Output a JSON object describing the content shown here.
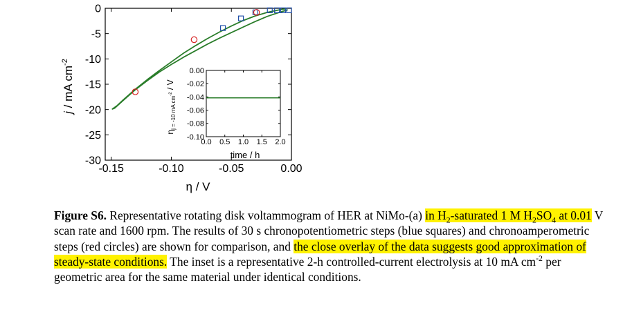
{
  "chart_data": [
    {
      "type": "line",
      "title": "",
      "xlabel": "η / V",
      "ylabel_italic": "j",
      "ylabel_rest": " / mA cm",
      "ylabel_exp": "-2",
      "xlim": [
        -0.155,
        0.0
      ],
      "ylim": [
        -30,
        0
      ],
      "xticks": [
        -0.15,
        -0.1,
        -0.05,
        0.0
      ],
      "xtick_labels": [
        "-0.15",
        "-0.10",
        "-0.05",
        "0.00"
      ],
      "yticks": [
        0,
        -5,
        -10,
        -15,
        -20,
        -25,
        -30
      ],
      "ytick_labels": [
        "0",
        "-5",
        "-10",
        "-15",
        "-20",
        "-25",
        "-30"
      ],
      "grid": false,
      "series": [
        {
          "role": "voltammogram",
          "color": "#2a7d2a",
          "x": [
            -0.003,
            -0.01,
            -0.02,
            -0.03,
            -0.04,
            -0.05,
            -0.06,
            -0.07,
            -0.08,
            -0.09,
            -0.1,
            -0.11,
            -0.12,
            -0.13,
            -0.14,
            -0.147,
            -0.149,
            -0.145,
            -0.14,
            -0.13,
            -0.12,
            -0.11,
            -0.1,
            -0.09,
            -0.08,
            -0.07,
            -0.06,
            -0.05,
            -0.04,
            -0.03,
            -0.02,
            -0.01,
            -0.005
          ],
          "y": [
            -0.3,
            -0.8,
            -1.6,
            -2.6,
            -3.7,
            -4.8,
            -5.9,
            -7.1,
            -8.4,
            -9.7,
            -11.1,
            -12.6,
            -14.3,
            -16.1,
            -18.2,
            -19.7,
            -19.9,
            -19.2,
            -18.1,
            -16.0,
            -14.1,
            -12.3,
            -10.6,
            -8.9,
            -7.4,
            -6.0,
            -4.7,
            -3.5,
            -2.4,
            -1.5,
            -0.8,
            -0.3,
            -0.1
          ]
        },
        {
          "role": "chronopotentiometric steps",
          "marker": "square",
          "color": "#1f4fa8",
          "x": [
            -0.002,
            -0.007,
            -0.012,
            -0.018,
            -0.03,
            -0.042,
            -0.057
          ],
          "y": [
            -0.4,
            -0.4,
            -0.4,
            -0.4,
            -0.8,
            -2.0,
            -3.9
          ]
        },
        {
          "role": "chronoamperometric steps",
          "marker": "circle",
          "color": "#d62020",
          "x": [
            -0.029,
            -0.081,
            -0.13
          ],
          "y": [
            -0.8,
            -6.2,
            -16.5
          ]
        }
      ]
    },
    {
      "type": "line",
      "inset": true,
      "title": "",
      "xlabel": "time / h",
      "ylabel_eta": "η",
      "ylabel_sub": "j = -10 mA cm",
      "ylabel_sub_exp": "-2",
      "ylabel_rest": " / V",
      "xlim": [
        0.0,
        2.0
      ],
      "ylim": [
        -0.1,
        0.0
      ],
      "xticks": [
        0.0,
        0.5,
        1.0,
        1.5,
        2.0
      ],
      "xtick_labels": [
        "0.0",
        "0.5",
        "1.0",
        "1.5",
        "2.0"
      ],
      "yticks": [
        0.0,
        -0.02,
        -0.04,
        -0.06,
        -0.08,
        -0.1
      ],
      "ytick_labels": [
        "0.00",
        "-0.02",
        "-0.04",
        "-0.06",
        "-0.08",
        "-0.10"
      ],
      "grid": false,
      "series": [
        {
          "color": "#2a7d2a",
          "x": [
            0.0,
            2.0
          ],
          "y": [
            -0.0415,
            -0.0415
          ]
        }
      ]
    }
  ],
  "caption": {
    "label": "Figure S6.",
    "t1": " Representative rotating disk voltammogram of HER at NiMo-(a) ",
    "h1a": "in H",
    "h1a_sub": "2",
    "h1b": "-saturated 1 M",
    "h1c": "H",
    "h1c_sub": "2",
    "h1d": "SO",
    "h1d_sub": "4",
    "h1e": " at 0.01",
    "t2": " V scan rate and 1600 rpm.  The results of 30 s chronopotentiometric steps (blue squares) and chronoamperometric steps (red circles) are shown for comparison, and ",
    "h2": "the close overlay of the data suggests good approximation of steady-state conditions.",
    "t3": "  The inset is a representative 2-h controlled-current electrolysis at 10 mA cm",
    "t3_exp": "-2",
    "t4": " per geometric area for the same material under identical conditions."
  }
}
